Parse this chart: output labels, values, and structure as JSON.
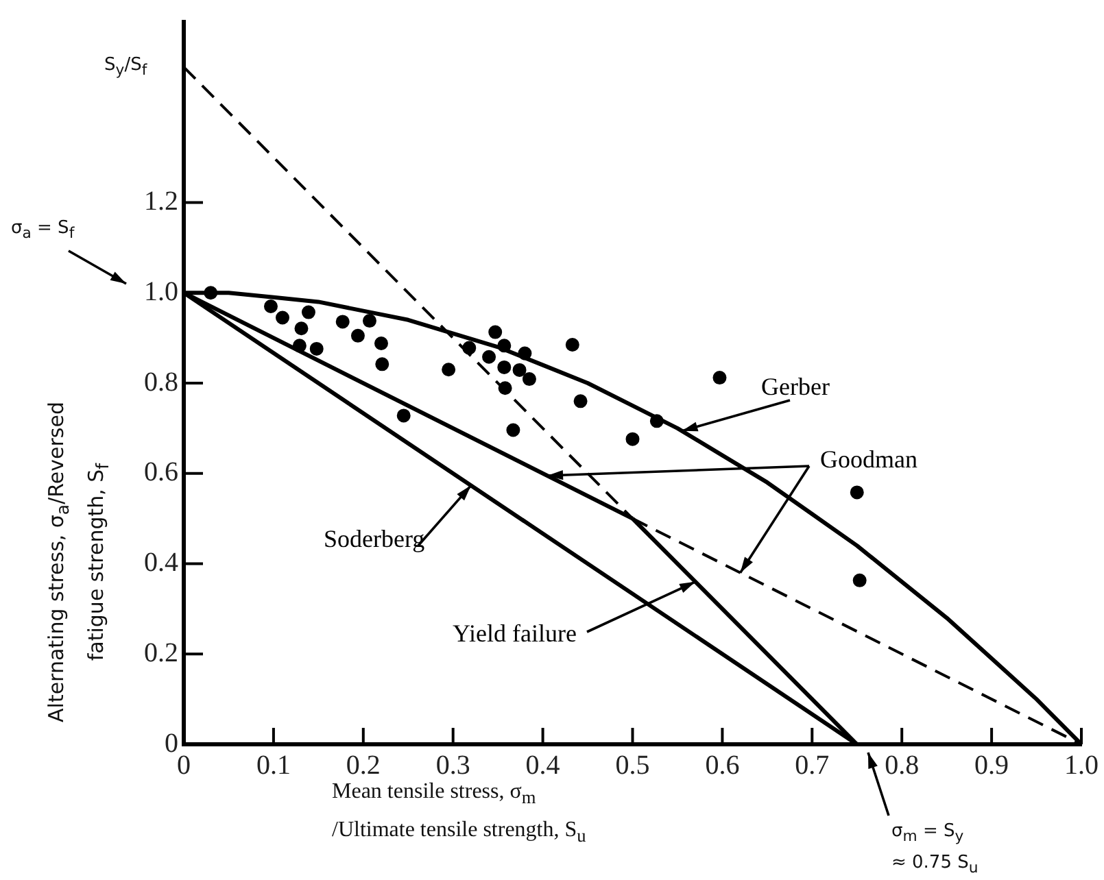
{
  "chart_data": {
    "type": "line",
    "xlabel": "Mean tensile stress, σ$_{m}$\n/Ultimate tensile strength, S$_{u}$",
    "ylabel": "Alternating stress, σ$_{a}$/Reversed\nfatigue strength, S$_{f}$",
    "xlim": [
      0,
      1.0
    ],
    "ylim": [
      0,
      1.6
    ],
    "xticks": [
      0,
      0.1,
      0.2,
      0.3,
      0.4,
      0.5,
      0.6,
      0.7,
      0.8,
      0.9,
      {
        "value": 1,
        "label": "1.0"
      }
    ],
    "yticks": [
      0,
      0.2,
      0.4,
      0.6,
      0.8,
      {
        "value": 1,
        "label": "1.0"
      },
      1.2
    ],
    "grid": false,
    "legend": false,
    "annotations": [
      "S$_{y}$/S$_{f}$",
      "σ$_{a}$ = S$_{f}$",
      "σ$_{m}$ = S$_{y}$\n≈ 0.75 S$_{u}$"
    ],
    "series": [
      {
        "name": "Gerber",
        "color": "#000000",
        "line_style": "solid",
        "x": [
          0,
          0.05,
          0.1,
          0.15,
          0.2,
          0.25,
          0.3,
          0.35,
          0.4,
          0.45,
          0.5,
          0.55,
          0.6,
          0.65,
          0.7,
          0.75,
          0.8,
          0.85,
          0.9,
          0.95,
          1.0
        ],
        "values": [
          1,
          1,
          0.99,
          0.98,
          0.96,
          0.94,
          0.91,
          0.88,
          0.84,
          0.8,
          0.75,
          0.7,
          0.64,
          0.58,
          0.51,
          0.44,
          0.36,
          0.28,
          0.19,
          0.1,
          0
        ]
      },
      {
        "name": "Goodman",
        "color": "#000000",
        "line_style": [
          "solid",
          "dashed"
        ],
        "x": [
          0,
          0.5,
          1.0
        ],
        "values": [
          1,
          0.5,
          0
        ]
      },
      {
        "name": "Soderberg",
        "color": "#000000",
        "line_style": "solid",
        "x": [
          0,
          0.75
        ],
        "values": [
          1,
          0
        ]
      },
      {
        "name": "Yield failure",
        "color": "#000000",
        "line_style": [
          "dashed",
          "solid"
        ],
        "x": [
          0,
          0.5,
          0.75
        ],
        "values": [
          1.5,
          0.5,
          0
        ]
      },
      {
        "type": "scatter",
        "color": "#000000",
        "marker": "circle",
        "x": [
          0.03,
          0.097,
          0.11,
          0.139,
          0.131,
          0.129,
          0.148,
          0.177,
          0.194,
          0.207,
          0.22,
          0.221,
          0.245,
          0.295,
          0.318,
          0.34,
          0.347,
          0.357,
          0.357,
          0.374,
          0.38,
          0.385,
          0.358,
          0.367,
          0.433,
          0.442,
          0.5,
          0.527,
          0.597,
          0.75,
          0.753
        ],
        "values": [
          1.0,
          0.97,
          0.945,
          0.957,
          0.921,
          0.883,
          0.876,
          0.936,
          0.905,
          0.938,
          0.888,
          0.842,
          0.728,
          0.83,
          0.878,
          0.858,
          0.913,
          0.883,
          0.835,
          0.829,
          0.866,
          0.809,
          0.789,
          0.696,
          0.885,
          0.76,
          0.676,
          0.716,
          0.812,
          0.558,
          0.363
        ]
      }
    ]
  }
}
